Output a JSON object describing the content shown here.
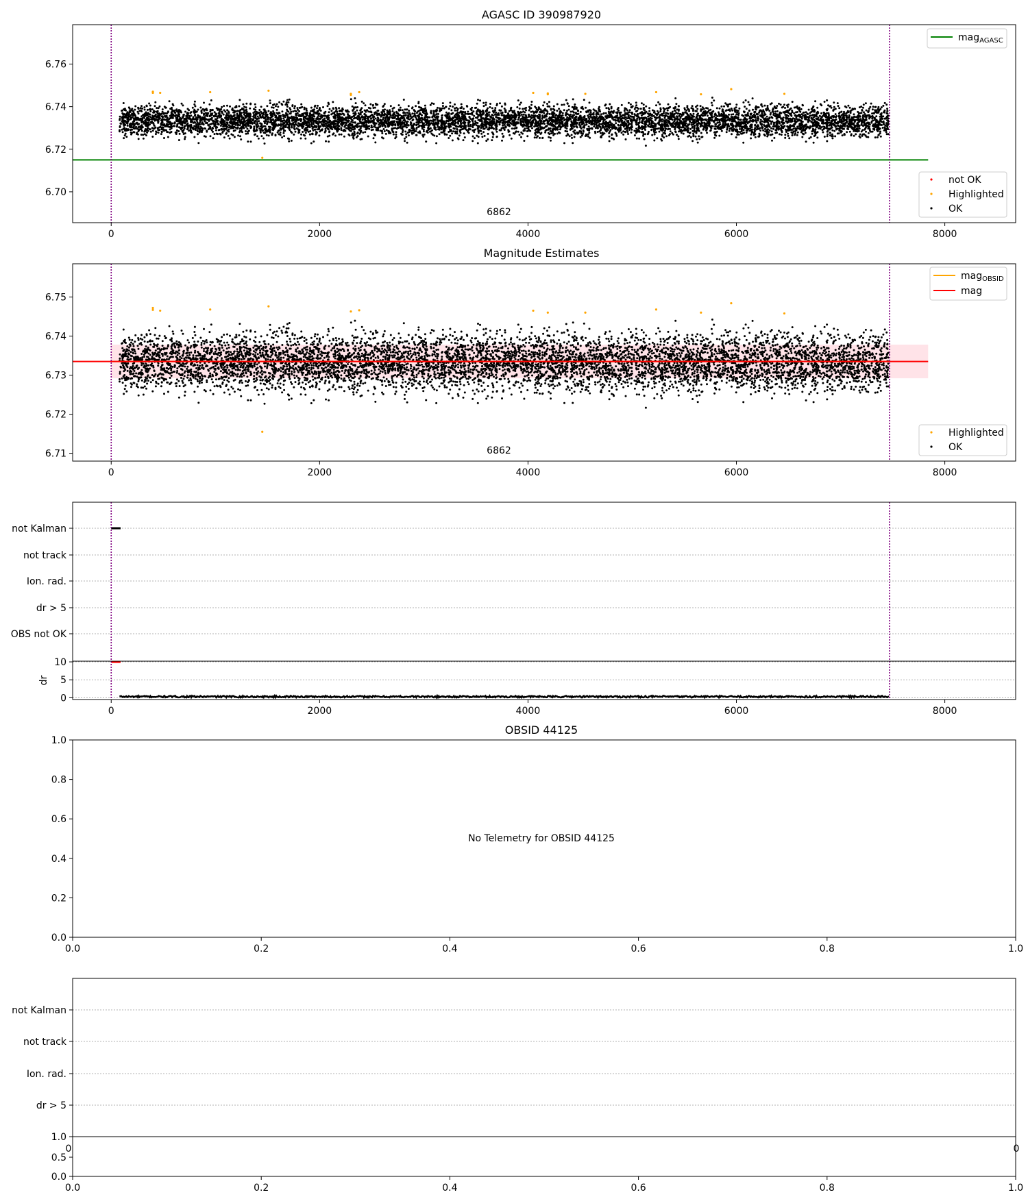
{
  "colors": {
    "ok": "#000000",
    "not_ok": "#ff0000",
    "highlighted": "#ffa500",
    "agasc_line": "#008000",
    "mag_line": "#ff0000",
    "obsid_line": "#ffa500",
    "band": "#ffc0cb",
    "obsid_bound": "#800080"
  },
  "panels": {
    "agasc": {
      "title": "AGASC ID 390987920",
      "obsid_label": "6862",
      "legend_lines": [
        {
          "label": "mag",
          "sub": "AGASC"
        }
      ],
      "legend_points": [
        "not OK",
        "Highlighted",
        "OK"
      ],
      "yticks": [
        "6.70",
        "6.72",
        "6.74",
        "6.76"
      ],
      "xticks": [
        "0",
        "2000",
        "4000",
        "6000",
        "8000"
      ]
    },
    "estimates": {
      "title": "Magnitude Estimates",
      "obsid_label": "6862",
      "legend_lines": [
        {
          "label": "mag",
          "sub": "OBSID"
        },
        {
          "label": "mag",
          "sub": ""
        }
      ],
      "legend_points": [
        "Highlighted",
        "OK"
      ],
      "yticks": [
        "6.71",
        "6.72",
        "6.73",
        "6.74",
        "6.75"
      ],
      "xticks": [
        "0",
        "2000",
        "4000",
        "6000",
        "8000"
      ]
    },
    "flags": {
      "categories": [
        "not Kalman",
        "not track",
        "Ion. rad.",
        "dr > 5",
        "OBS not OK"
      ],
      "dr_label": "dr",
      "dr_yticks": [
        "0",
        "5",
        "10"
      ],
      "xticks": [
        "0",
        "2000",
        "4000",
        "6000",
        "8000"
      ]
    },
    "obsid": {
      "title": "OBSID 44125",
      "message": "No Telemetry for OBSID 44125",
      "yticks": [
        "0.0",
        "0.2",
        "0.4",
        "0.6",
        "0.8",
        "1.0"
      ],
      "xticks": [
        "0.0",
        "0.2",
        "0.4",
        "0.6",
        "0.8",
        "1.0"
      ]
    },
    "flags2": {
      "categories": [
        "not Kalman",
        "not track",
        "Ion. rad.",
        "dr > 5"
      ],
      "top_yticks": [
        "1.0"
      ],
      "side_tick_left": "0",
      "side_tick_right": "0",
      "bottom_yticks": [
        "0.0",
        "0.5",
        "1.0"
      ],
      "xticks": [
        "0.0",
        "0.2",
        "0.4",
        "0.6",
        "0.8",
        "1.0"
      ]
    }
  },
  "chart_data": [
    {
      "type": "scatter",
      "title": "AGASC ID 390987920",
      "xlim": [
        -370,
        8680
      ],
      "ylim": [
        6.6855,
        6.7785
      ],
      "series": [
        {
          "name": "OK",
          "x_range": [
            80,
            7460
          ],
          "approx_count": 7000,
          "y_center": 6.7333,
          "y_spread": 0.0048
        },
        {
          "name": "Highlighted",
          "x": [
            400,
            400,
            470,
            950,
            1450,
            1510,
            2300,
            2300,
            2380,
            4050,
            4190,
            4190,
            4550,
            5230,
            5660,
            5950,
            6460
          ],
          "y": [
            6.7465,
            6.747,
            6.7465,
            6.7468,
            6.716,
            6.7475,
            6.746,
            6.7455,
            6.7468,
            6.7465,
            6.7462,
            6.7458,
            6.746,
            6.7468,
            6.7458,
            6.7482,
            6.746
          ]
        },
        {
          "name": "not OK",
          "x": [],
          "y": []
        },
        {
          "name": "mag_AGASC",
          "kind": "hline",
          "y": 6.715,
          "x_range": [
            -370,
            7840
          ]
        }
      ],
      "obsid_boundaries_x": [
        0,
        7470
      ],
      "annotations": [
        {
          "text": "6862",
          "x": 3735
        }
      ]
    },
    {
      "type": "scatter",
      "title": "Magnitude Estimates",
      "xlim": [
        -370,
        8680
      ],
      "ylim": [
        6.708,
        6.7585
      ],
      "series": [
        {
          "name": "OK",
          "x_range": [
            80,
            7460
          ],
          "approx_count": 7000,
          "y_center": 6.7333,
          "y_spread": 0.0048
        },
        {
          "name": "Highlighted",
          "x": [
            400,
            400,
            470,
            950,
            1450,
            1510,
            2300,
            2380,
            4050,
            4190,
            4550,
            5230,
            5660,
            5950,
            6460
          ],
          "y": [
            6.7472,
            6.7467,
            6.7465,
            6.7468,
            6.7155,
            6.7476,
            6.7463,
            6.7466,
            6.7465,
            6.746,
            6.746,
            6.7468,
            6.746,
            6.7484,
            6.7458
          ]
        },
        {
          "name": "mag_OBSID",
          "kind": "hline",
          "y": 6.7335,
          "x_range": [
            0,
            7470
          ]
        },
        {
          "name": "mag",
          "kind": "hline",
          "y": 6.7335,
          "x_range": [
            -370,
            7840
          ]
        },
        {
          "name": "mag band",
          "kind": "band",
          "y_range": [
            6.7292,
            6.7378
          ],
          "x_range": [
            0,
            7840
          ]
        }
      ],
      "obsid_boundaries_x": [
        0,
        7470
      ],
      "annotations": [
        {
          "text": "6862",
          "x": 3735
        }
      ]
    },
    {
      "type": "scatter",
      "categories": [
        "not Kalman",
        "not track",
        "Ion. rad.",
        "dr > 5",
        "OBS not OK"
      ],
      "xlim": [
        -370,
        8680
      ],
      "flag_segments": [
        {
          "category": "not Kalman",
          "x_range": [
            0,
            90
          ]
        }
      ],
      "dr": {
        "ylim": [
          -0.5,
          10.2
        ],
        "baseline_x_range": [
          80,
          7470
        ],
        "baseline_y": 0.3,
        "red_segment": {
          "x_range": [
            0,
            90
          ],
          "y": 10
        }
      }
    },
    {
      "type": "scatter",
      "title": "OBSID 44125",
      "xlim": [
        0,
        1
      ],
      "ylim": [
        0,
        1
      ],
      "series": []
    }
  ]
}
